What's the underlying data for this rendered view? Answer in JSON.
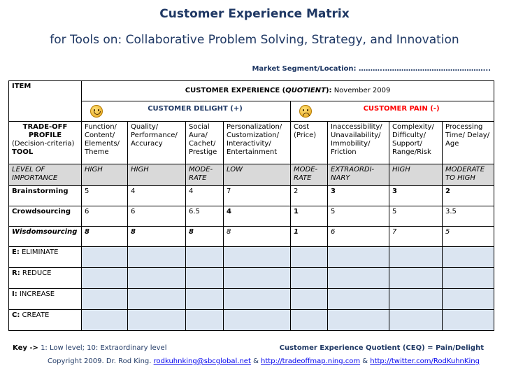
{
  "header": {
    "title": "Customer Experience Matrix",
    "subtitle": "for Tools on: Collaborative Problem Solving, Strategy, and Innovation",
    "market": "Market Segment/Location: ………..……………………………………..."
  },
  "table": {
    "item_header": "ITEM",
    "quotient_prefix": "CUSTOMER EXPERIENCE (",
    "quotient_word": "QUOTIENT",
    "quotient_suffix": "):",
    "quotient_date": " November 2009",
    "delight_label": "CUSTOMER DELIGHT (+)",
    "pain_label": "CUSTOMER PAIN (-)",
    "profile_label": {
      "line1": "TRADE-OFF",
      "line2": "PROFILE",
      "line3": "(Decision-criteria)",
      "line4": "TOOL"
    },
    "criteria": [
      "Function/ Content/ Elements/ Theme",
      "Quality/ Performance/ Accuracy",
      "Social Aura/ Cachet/ Prestige",
      "Personalization/ Customization/ Interactivity/ Entertainment",
      "Cost (Price)",
      "Inaccessibility/ Unavailability/ Immobility/ Friction",
      "Complexity/ Difficulty/ Support/ Range/Risk",
      "Processing Time/ Delay/ Age"
    ],
    "importance_label": "LEVEL OF IMPORTANCE",
    "importance": [
      "HIGH",
      "HIGH",
      "MODE-RATE",
      "LOW",
      "MODE-RATE",
      "EXTRAORDI-NARY",
      "HIGH",
      "MODERATE TO HIGH"
    ],
    "rows": [
      {
        "label": "Brainstorming",
        "values": [
          "5",
          "4",
          "4",
          "7",
          "2",
          "3",
          "3",
          "2"
        ]
      },
      {
        "label": "Crowdsourcing",
        "values": [
          "6",
          "6",
          "6.5",
          "4",
          "1",
          "5",
          "5",
          "3.5"
        ]
      },
      {
        "label": "Wisdomsourcing",
        "values": [
          "8",
          "8",
          "8",
          "8",
          "1",
          "6",
          "7",
          "5"
        ]
      }
    ],
    "actions": [
      {
        "letter": "E:",
        "word": " ELIMINATE"
      },
      {
        "letter": "R:",
        "word": " REDUCE"
      },
      {
        "letter": "I:",
        "word": " INCREASE"
      },
      {
        "letter": "C:",
        "word": " CREATE"
      }
    ]
  },
  "footer": {
    "key_label": "Key  ->",
    "key_text": " 1: Low level; 10: Extraordinary level",
    "ceq": "Customer Experience Quotient (CEQ) = Pain/Delight",
    "copyright_prefix": "Copyright 2009. Dr. Rod King. ",
    "email": "rodkuhnking@sbcglobal.net",
    "amp1": " & ",
    "link1": "http://tradeoffmap.ning.com",
    "amp2": " & ",
    "link2": "http://twitter.com/RodKuhnKing"
  }
}
